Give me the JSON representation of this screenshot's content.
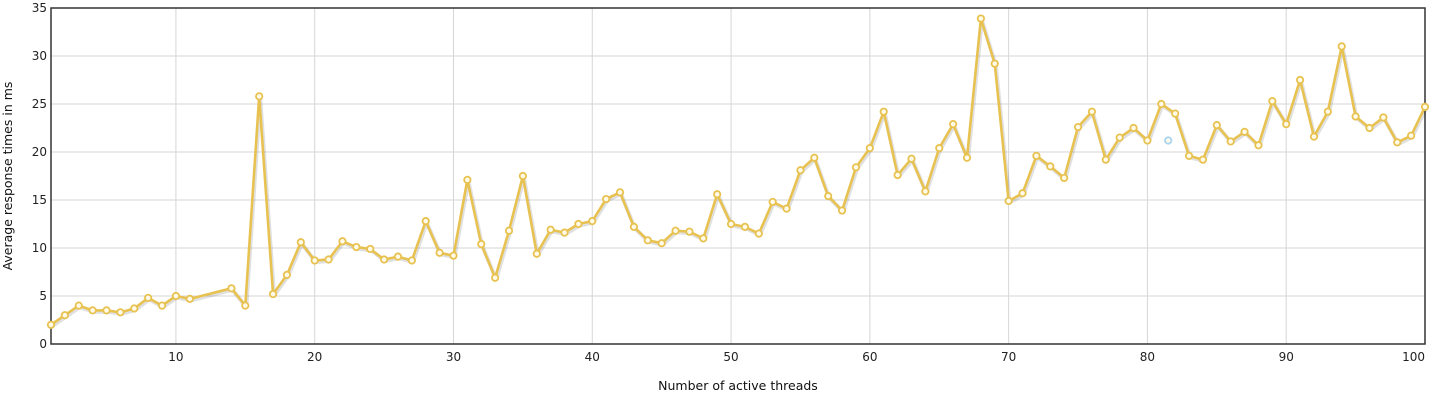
{
  "chart_data": {
    "type": "line",
    "title": "",
    "xlabel": "Number of active threads",
    "ylabel": "Average response times in ms",
    "xlim": [
      1,
      100
    ],
    "ylim": [
      0,
      35
    ],
    "x_ticks": [
      10,
      20,
      30,
      40,
      50,
      60,
      70,
      80,
      90,
      100
    ],
    "y_ticks": [
      0,
      5,
      10,
      15,
      20,
      25,
      30,
      35
    ],
    "grid": true,
    "legend": "none",
    "series": [
      {
        "color": "#e8c251",
        "x": [
          1,
          2,
          3,
          4,
          5,
          6,
          7,
          8,
          9,
          10,
          11,
          14,
          15,
          16,
          17,
          18,
          19,
          20,
          21,
          22,
          23,
          24,
          25,
          26,
          27,
          28,
          29,
          30,
          31,
          32,
          33,
          34,
          35,
          36,
          37,
          38,
          39,
          40,
          41,
          42,
          43,
          44,
          45,
          46,
          47,
          48,
          49,
          50,
          51,
          52,
          53,
          54,
          55,
          56,
          57,
          58,
          59,
          60,
          61,
          62,
          63,
          64,
          65,
          66,
          67,
          68,
          69,
          70,
          71,
          72,
          73,
          74,
          75,
          76,
          77,
          78,
          79,
          80,
          81,
          82,
          83,
          84,
          85,
          86,
          87,
          88,
          89,
          90,
          91,
          92,
          93,
          94,
          95,
          96,
          97,
          98,
          99,
          100
        ],
        "y": [
          2.0,
          3.0,
          4.0,
          3.5,
          3.5,
          3.3,
          3.7,
          4.8,
          4.0,
          5.0,
          4.7,
          5.8,
          4.0,
          25.8,
          5.2,
          7.2,
          10.6,
          8.7,
          8.8,
          10.7,
          10.1,
          9.9,
          8.8,
          9.1,
          8.7,
          12.8,
          9.5,
          9.2,
          17.1,
          10.4,
          6.9,
          11.8,
          17.5,
          9.4,
          11.9,
          11.6,
          12.5,
          12.8,
          15.1,
          15.8,
          12.2,
          10.8,
          10.5,
          11.8,
          11.7,
          11.0,
          15.6,
          12.5,
          12.2,
          11.5,
          14.8,
          14.1,
          18.1,
          19.4,
          15.4,
          13.9,
          18.4,
          20.4,
          24.2,
          17.6,
          19.3,
          15.9,
          20.4,
          22.9,
          19.4,
          33.9,
          29.2,
          14.9,
          15.7,
          19.6,
          18.5,
          17.3,
          22.6,
          24.2,
          19.2,
          21.5,
          22.5,
          21.2,
          25.0,
          24.0,
          19.6,
          19.2,
          22.8,
          21.1,
          22.1,
          20.7,
          25.3,
          22.9,
          27.5,
          21.6,
          24.2,
          31.0,
          23.7,
          22.5,
          23.6,
          21.0,
          21.7,
          24.7
        ]
      },
      {
        "color": "#a9d3ef",
        "x": [
          81.5
        ],
        "y": [
          21.2
        ]
      }
    ]
  }
}
